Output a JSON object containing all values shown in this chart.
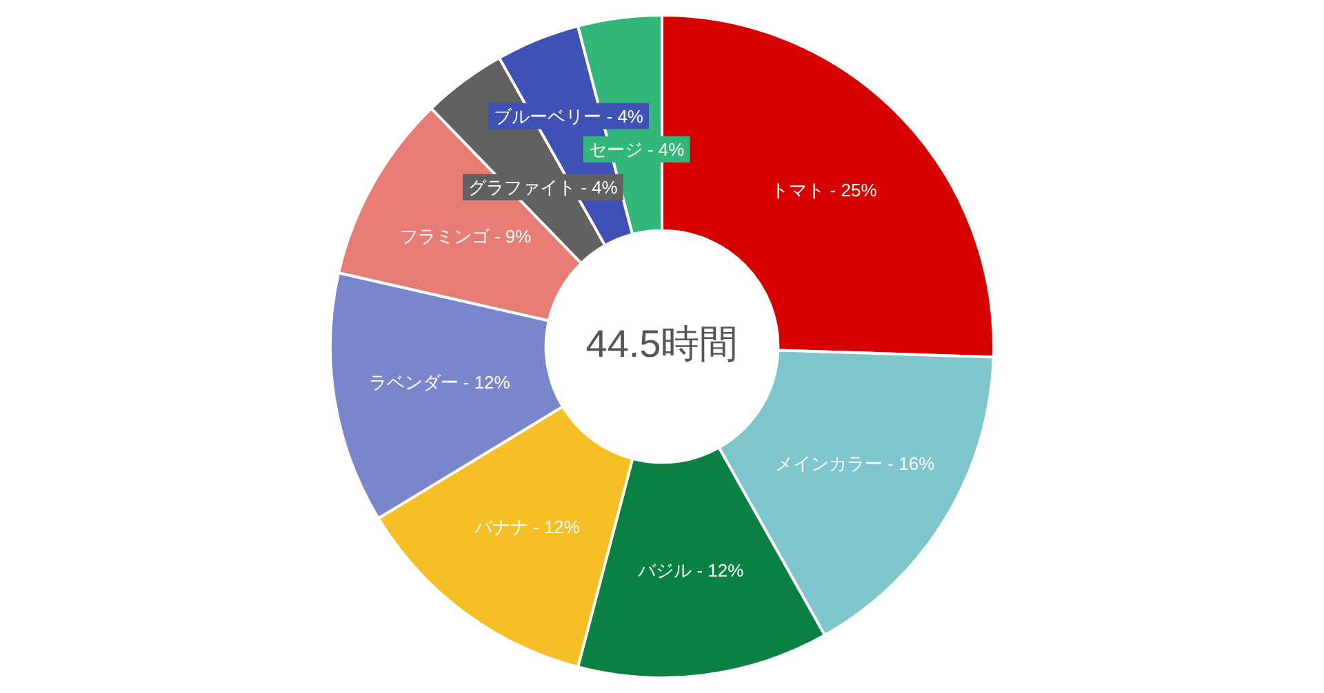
{
  "chart_data": {
    "type": "donut",
    "categories": [
      "トマト",
      "メインカラー",
      "バジル",
      "バナナ",
      "ラベンダー",
      "フラミンゴ",
      "グラファイト",
      "ブルーベリー",
      "セージ"
    ],
    "values": [
      25,
      16,
      12,
      12,
      12,
      9,
      4,
      4,
      4
    ],
    "colors": [
      "#d50000",
      "#7ec5cc",
      "#0b8043",
      "#f6bf26",
      "#7986cb",
      "#e67c73",
      "#616161",
      "#3f51b5",
      "#33b679"
    ],
    "value_labels": [
      "25%",
      "16%",
      "12%",
      "12%",
      "12%",
      "9%",
      "4%",
      "4%",
      "4%"
    ],
    "annotations": [
      "44.5時間"
    ],
    "legend": false
  }
}
